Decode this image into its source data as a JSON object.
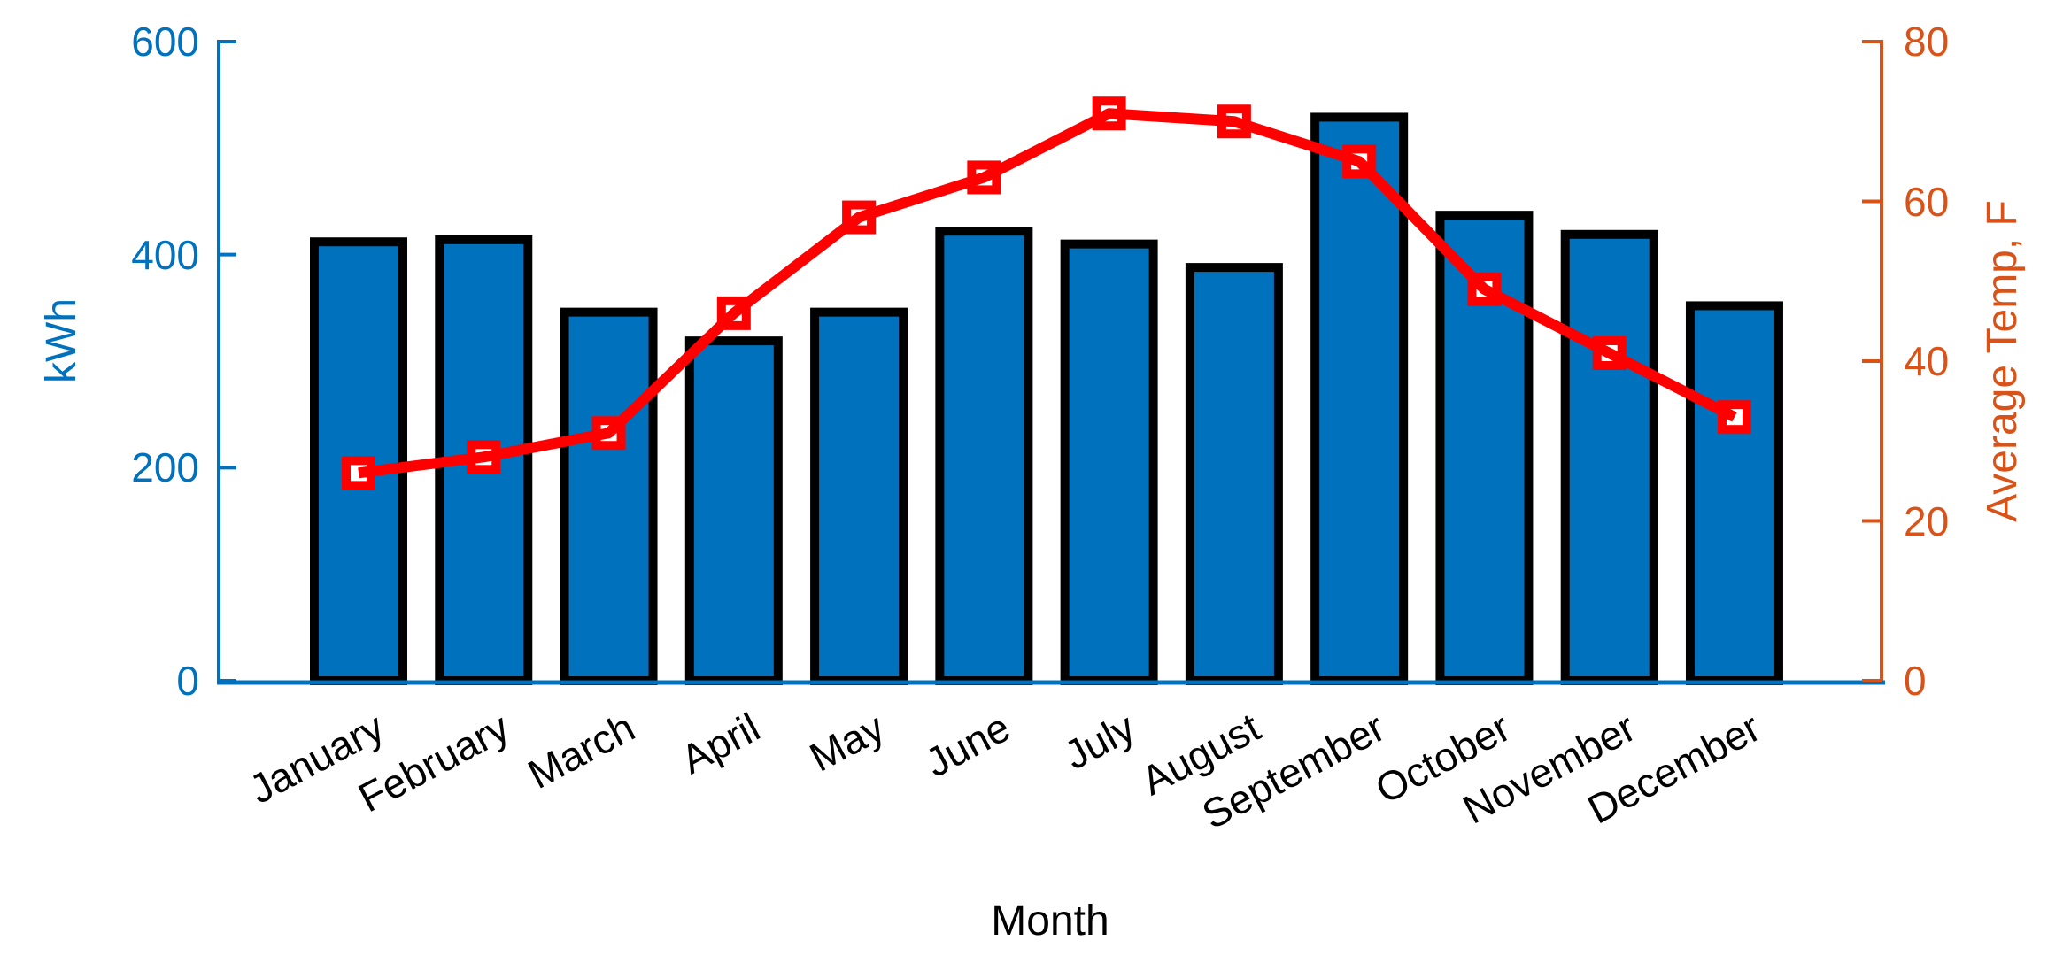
{
  "figure": {
    "background": "#FFFFFF",
    "title": ""
  },
  "chart_data": {
    "type": "combo",
    "categories": [
      "January",
      "February",
      "March",
      "April",
      "May",
      "June",
      "July",
      "August",
      "September",
      "October",
      "November",
      "December"
    ],
    "series": [
      {
        "name": "kWh",
        "type": "bar",
        "y_axis": "left",
        "values": [
          412,
          414,
          346,
          319,
          346,
          422,
          410,
          388,
          529,
          437,
          419,
          352
        ],
        "fill": "#0072BD",
        "edge_color": "#000000"
      },
      {
        "name": "Average Temp, F",
        "type": "line",
        "y_axis": "right",
        "values": [
          26,
          28,
          31,
          46,
          58,
          63,
          71,
          70,
          65,
          49,
          41,
          33
        ],
        "color": "#FF0000",
        "marker": "open-square",
        "marker_face": "#FFFFFF"
      }
    ],
    "x_axis": {
      "label": "Month",
      "tick_label_rotation_deg": 28,
      "axis_color": "#0072BD"
    },
    "left_axis": {
      "label": "kWh",
      "range": [
        0,
        600
      ],
      "ticks": [
        0,
        200,
        400,
        600
      ],
      "color": "#0072BD"
    },
    "right_axis": {
      "label": "Average Temp, F",
      "range": [
        0,
        80
      ],
      "ticks": [
        0,
        20,
        40,
        60,
        80
      ],
      "color": "#D95319"
    },
    "grid": false,
    "legend": false,
    "title": ""
  }
}
